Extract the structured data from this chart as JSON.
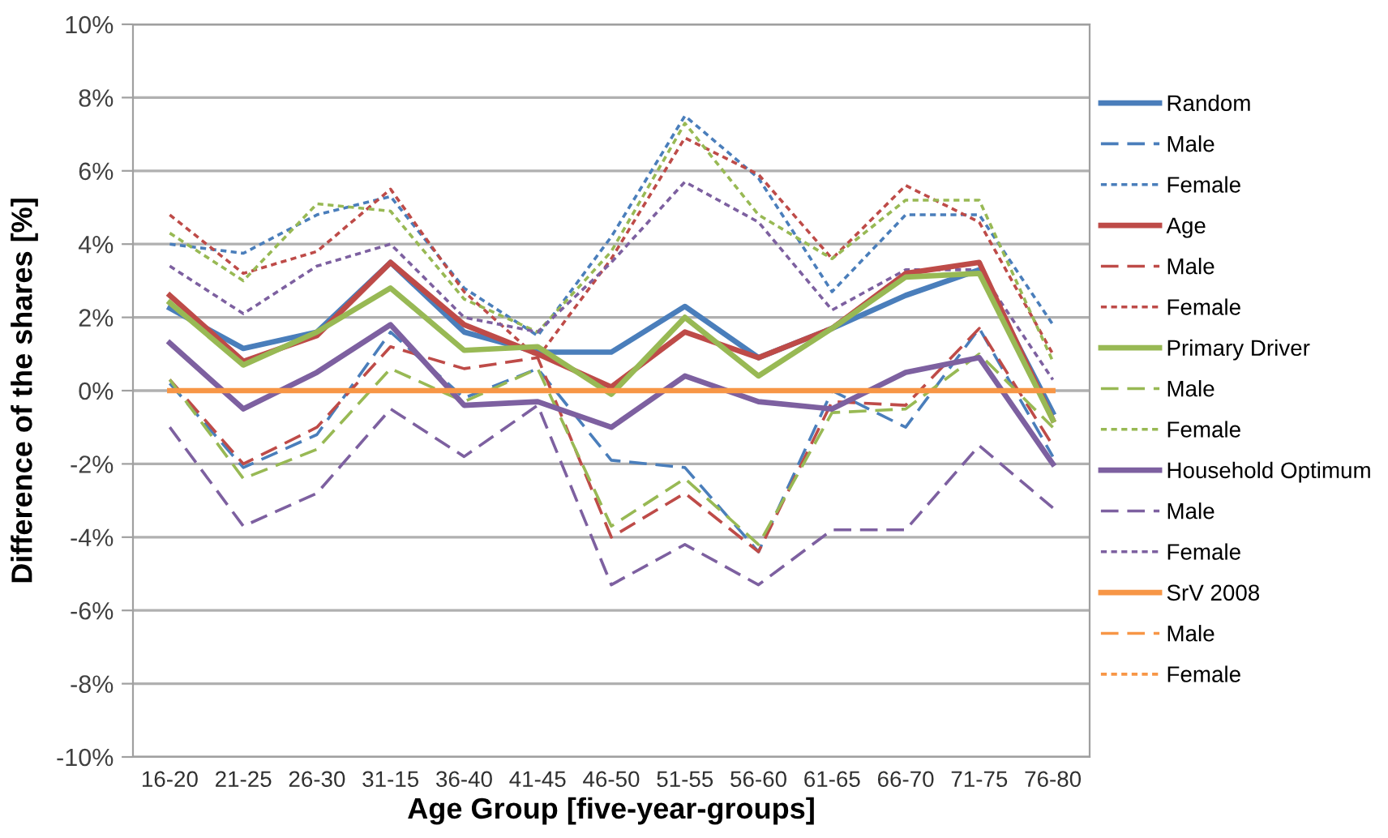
{
  "chart_data": {
    "type": "line",
    "xlabel": "Age Group [five-year-groups]",
    "ylabel": "Difference of the shares [%]",
    "categories": [
      "16-20",
      "21-25",
      "26-30",
      "31-15",
      "36-40",
      "41-45",
      "46-50",
      "51-55",
      "56-60",
      "61-65",
      "66-70",
      "71-75",
      "76-80"
    ],
    "ylim": [
      -10,
      10
    ],
    "yticks": [
      {
        "value": -10,
        "label": "-10%"
      },
      {
        "value": -8,
        "label": "-8%"
      },
      {
        "value": -6,
        "label": "-6%"
      },
      {
        "value": -4,
        "label": "-4%"
      },
      {
        "value": -2,
        "label": "-2%"
      },
      {
        "value": 0,
        "label": "0%"
      },
      {
        "value": 2,
        "label": "2%"
      },
      {
        "value": 4,
        "label": "4%"
      },
      {
        "value": 6,
        "label": "6%"
      },
      {
        "value": 8,
        "label": "8%"
      },
      {
        "value": 10,
        "label": "10%"
      }
    ],
    "grid": "y",
    "legend": "right",
    "marker": "none",
    "series": [
      {
        "name": "Random",
        "color": "#4a7ebb",
        "line_style": "solid",
        "values": [
          2.25,
          1.15,
          1.6,
          3.5,
          1.6,
          1.05,
          1.05,
          2.3,
          0.9,
          1.7,
          2.6,
          3.3,
          -0.6
        ]
      },
      {
        "name": "Male",
        "color": "#4a7ebb",
        "line_style": "dashed",
        "values": [
          0.2,
          -2.1,
          -1.2,
          1.6,
          -0.2,
          0.6,
          -1.9,
          -2.1,
          -4.4,
          0.0,
          -1.0,
          1.7,
          -1.8
        ]
      },
      {
        "name": "Female",
        "color": "#4a7ebb",
        "line_style": "dotted",
        "values": [
          4.0,
          3.75,
          4.8,
          5.3,
          2.8,
          1.5,
          4.2,
          7.5,
          5.8,
          2.7,
          4.8,
          4.8,
          1.8
        ]
      },
      {
        "name": "Age",
        "color": "#be4b48",
        "line_style": "solid",
        "values": [
          2.6,
          0.8,
          1.5,
          3.5,
          1.8,
          1.0,
          0.1,
          1.6,
          0.9,
          1.7,
          3.2,
          3.5,
          -0.8
        ]
      },
      {
        "name": "Male",
        "color": "#be4b48",
        "line_style": "dashed",
        "values": [
          0.3,
          -2.0,
          -1.0,
          1.2,
          0.6,
          0.9,
          -4.0,
          -2.8,
          -4.4,
          -0.3,
          -0.4,
          1.7,
          -1.5
        ]
      },
      {
        "name": "Female",
        "color": "#be4b48",
        "line_style": "dotted",
        "values": [
          4.8,
          3.2,
          3.8,
          5.5,
          2.7,
          0.9,
          3.6,
          6.9,
          5.9,
          3.6,
          5.6,
          4.6,
          1.0
        ]
      },
      {
        "name": "Primary Driver",
        "color": "#98b954",
        "line_style": "solid",
        "values": [
          2.4,
          0.7,
          1.6,
          2.8,
          1.1,
          1.2,
          -0.1,
          2.0,
          0.4,
          1.7,
          3.1,
          3.2,
          -0.8
        ]
      },
      {
        "name": "Male",
        "color": "#98b954",
        "line_style": "dashed",
        "values": [
          0.3,
          -2.4,
          -1.6,
          0.6,
          -0.3,
          0.6,
          -3.7,
          -2.4,
          -4.2,
          -0.6,
          -0.5,
          1.0,
          -1.0
        ]
      },
      {
        "name": "Female",
        "color": "#98b954",
        "line_style": "dotted",
        "values": [
          4.3,
          3.0,
          5.1,
          4.9,
          2.5,
          1.6,
          3.8,
          7.3,
          4.8,
          3.6,
          5.2,
          5.2,
          0.8
        ]
      },
      {
        "name": "Household Optimum",
        "color": "#7d60a0",
        "line_style": "solid",
        "values": [
          1.3,
          -0.5,
          0.5,
          1.8,
          -0.4,
          -0.3,
          -1.0,
          0.4,
          -0.3,
          -0.5,
          0.5,
          0.9,
          -2.0
        ]
      },
      {
        "name": "Male",
        "color": "#7d60a0",
        "line_style": "dashed",
        "values": [
          -1.0,
          -3.7,
          -2.8,
          -0.5,
          -1.8,
          -0.4,
          -5.3,
          -4.2,
          -5.3,
          -3.8,
          -3.8,
          -1.5,
          -3.2
        ]
      },
      {
        "name": "Female",
        "color": "#7d60a0",
        "line_style": "dotted",
        "values": [
          3.4,
          2.1,
          3.4,
          4.0,
          2.0,
          1.6,
          3.5,
          5.7,
          4.6,
          2.2,
          3.3,
          3.3,
          0.3
        ]
      },
      {
        "name": "SrV 2008",
        "color": "#f79646",
        "line_style": "solid",
        "values": [
          0,
          0,
          0,
          0,
          0,
          0,
          0,
          0,
          0,
          0,
          0,
          0,
          0
        ]
      },
      {
        "name": "Male",
        "color": "#f79646",
        "line_style": "dashed",
        "values": [
          null,
          null,
          null,
          null,
          null,
          null,
          null,
          null,
          null,
          null,
          null,
          null,
          null
        ]
      },
      {
        "name": "Female",
        "color": "#f79646",
        "line_style": "dotted",
        "values": [
          null,
          null,
          null,
          null,
          null,
          null,
          null,
          null,
          null,
          null,
          null,
          null,
          null
        ]
      }
    ]
  }
}
